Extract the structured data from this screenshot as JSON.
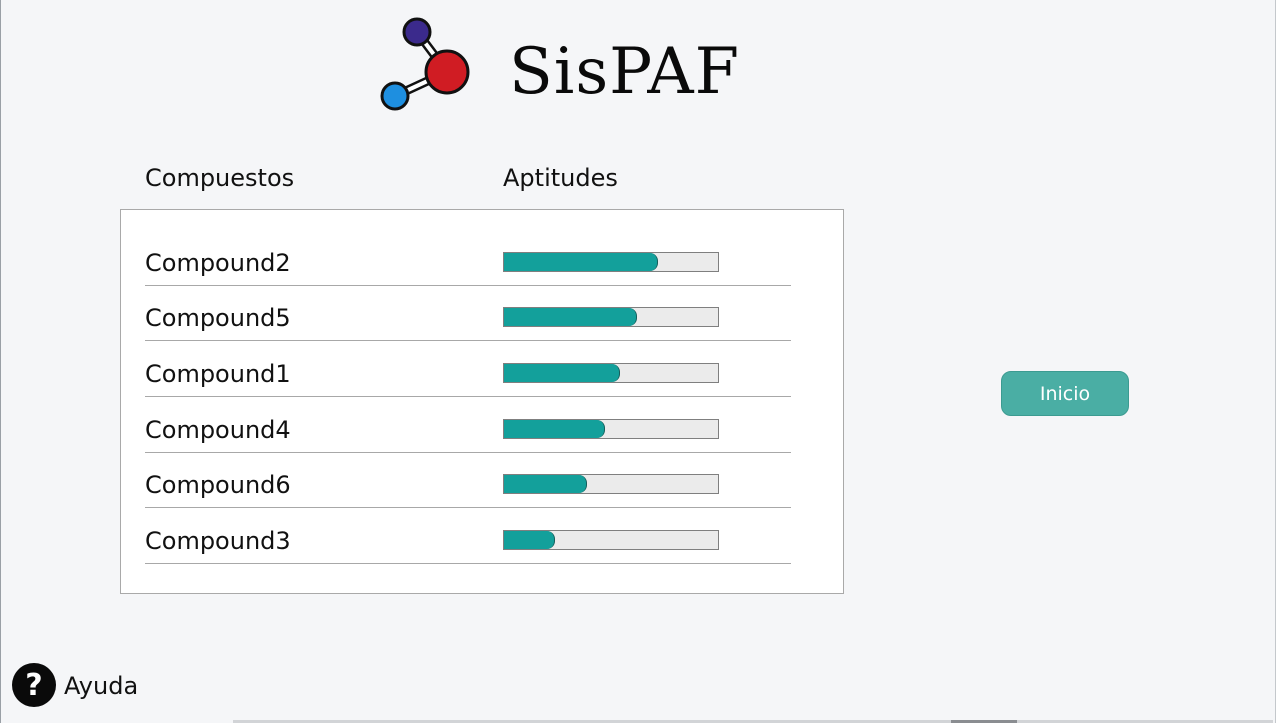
{
  "app": {
    "title": "SisPAF",
    "logo_icon": "molecule-icon"
  },
  "columns": {
    "compounds": "Compuestos",
    "aptitudes": "Aptitudes"
  },
  "compounds": [
    {
      "name": "Compound2",
      "aptitude": 0.72
    },
    {
      "name": "Compound5",
      "aptitude": 0.62
    },
    {
      "name": "Compound1",
      "aptitude": 0.54
    },
    {
      "name": "Compound4",
      "aptitude": 0.47
    },
    {
      "name": "Compound6",
      "aptitude": 0.39
    },
    {
      "name": "Compound3",
      "aptitude": 0.24
    }
  ],
  "actions": {
    "inicio_label": "Inicio"
  },
  "help": {
    "icon": "question-circle-icon",
    "label": "Ayuda"
  },
  "colors": {
    "accent": "#13a09b",
    "button": "#4aaea4",
    "background": "#f5f6f8"
  }
}
